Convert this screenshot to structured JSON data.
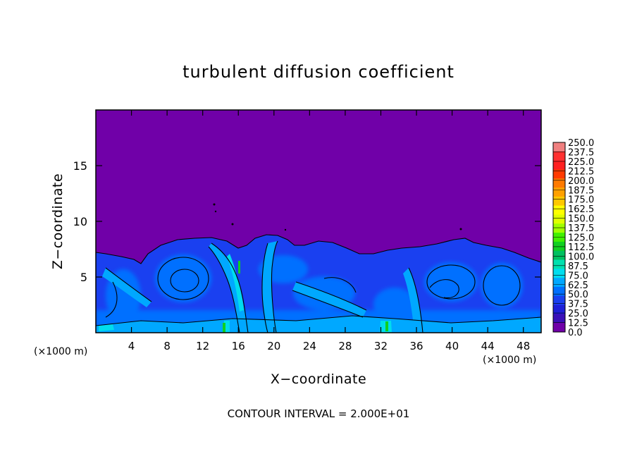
{
  "chart_data": {
    "type": "heatmap",
    "title": "turbulent diffusion coefficient",
    "xlabel": "X−coordinate",
    "ylabel": "Z−coordinate",
    "x_unit_left": "(×1000 m)",
    "x_unit_right": "(×1000 m)",
    "xlim": [
      0,
      50
    ],
    "ylim": [
      0,
      20
    ],
    "x_ticks": [
      4,
      8,
      12,
      16,
      20,
      24,
      28,
      32,
      36,
      40,
      44,
      48
    ],
    "y_ticks": [
      5,
      10,
      15
    ],
    "colorbar_levels": [
      "250.0",
      "237.5",
      "225.0",
      "212.5",
      "200.0",
      "187.5",
      "175.0",
      "162.5",
      "150.0",
      "137.5",
      "125.0",
      "112.5",
      "100.0",
      "87.5",
      "75.0",
      "62.5",
      "50.0",
      "37.5",
      "25.0",
      "12.5",
      "0.0"
    ],
    "colorbar_colors": [
      "#f08080",
      "#ff3030",
      "#ff2020",
      "#ff3a00",
      "#ff7a00",
      "#ffa000",
      "#ffc800",
      "#ffff00",
      "#e0ff00",
      "#a0ff00",
      "#40f000",
      "#10d020",
      "#00c060",
      "#00e0b0",
      "#00ddee",
      "#00a8ff",
      "#0070ff",
      "#1a40f0",
      "#1e20d8",
      "#3a10b8",
      "#7000a8"
    ],
    "background_color": "#7000a8",
    "contour_interval": "CONTOUR INTERVAL = 2.000E+01",
    "legend_position": "right",
    "grid": false
  }
}
